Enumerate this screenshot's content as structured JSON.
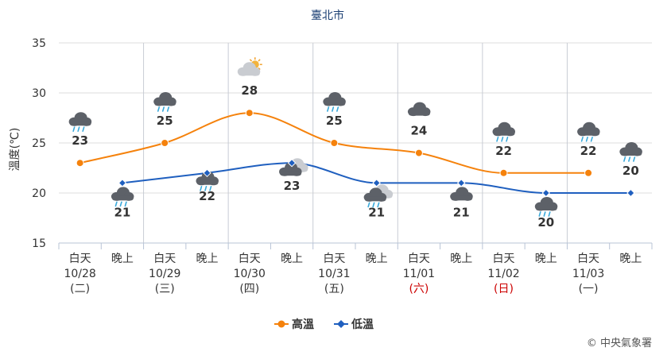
{
  "chart_data": {
    "type": "line",
    "title": "臺北市",
    "ylabel": "溫度(℃)",
    "ylim": [
      15,
      35
    ],
    "yticks": [
      15,
      20,
      25,
      30,
      35
    ],
    "grid": true,
    "legend_position": "bottom-center",
    "categories": [
      {
        "period": "白天",
        "date": "10/28",
        "weekday": "(二)"
      },
      {
        "period": "晚上",
        "date": "",
        "weekday": ""
      },
      {
        "period": "白天",
        "date": "10/29",
        "weekday": "(三)"
      },
      {
        "period": "晚上",
        "date": "",
        "weekday": ""
      },
      {
        "period": "白天",
        "date": "10/30",
        "weekday": "(四)"
      },
      {
        "period": "晚上",
        "date": "",
        "weekday": ""
      },
      {
        "period": "白天",
        "date": "10/31",
        "weekday": "(五)"
      },
      {
        "period": "晚上",
        "date": "",
        "weekday": ""
      },
      {
        "period": "白天",
        "date": "11/01",
        "weekday": "(六)",
        "weekend": true
      },
      {
        "period": "晚上",
        "date": "",
        "weekday": ""
      },
      {
        "period": "白天",
        "date": "11/02",
        "weekday": "(日)",
        "weekend": true
      },
      {
        "period": "晚上",
        "date": "",
        "weekday": ""
      },
      {
        "period": "白天",
        "date": "11/03",
        "weekday": "(一)"
      },
      {
        "period": "晚上",
        "date": "",
        "weekday": ""
      }
    ],
    "series": [
      {
        "name": "高溫",
        "color": "#f5820c",
        "marker": "circle",
        "values": [
          23,
          null,
          25,
          null,
          28,
          null,
          25,
          null,
          24,
          null,
          22,
          null,
          22,
          null
        ]
      },
      {
        "name": "低溫",
        "color": "#1f5fbf",
        "marker": "diamond",
        "values": [
          null,
          21,
          null,
          22,
          null,
          23,
          null,
          21,
          null,
          21,
          null,
          20,
          null,
          20
        ]
      }
    ],
    "weather_icons": [
      {
        "value": 23,
        "icon": "rain-cloud-icon"
      },
      {
        "value": 21,
        "icon": "rain-cloud-icon"
      },
      {
        "value": 25,
        "icon": "rain-cloud-icon"
      },
      {
        "value": 22,
        "icon": "rain-cloud-icon"
      },
      {
        "value": 28,
        "icon": "partly-sunny-cloud-icon"
      },
      {
        "value": 23,
        "icon": "partly-cloudy-night-icon"
      },
      {
        "value": 25,
        "icon": "rain-cloud-icon"
      },
      {
        "value": 21,
        "icon": "cloudy-showers-icon"
      },
      {
        "value": 24,
        "icon": "overcast-cloud-icon"
      },
      {
        "value": 21,
        "icon": "overcast-cloud-icon"
      },
      {
        "value": 22,
        "icon": "rain-cloud-icon"
      },
      {
        "value": 20,
        "icon": "rain-cloud-icon"
      },
      {
        "value": 22,
        "icon": "rain-cloud-icon"
      },
      {
        "value": 20,
        "icon": "rain-cloud-icon"
      }
    ]
  },
  "credit": "© 中央氣象署"
}
